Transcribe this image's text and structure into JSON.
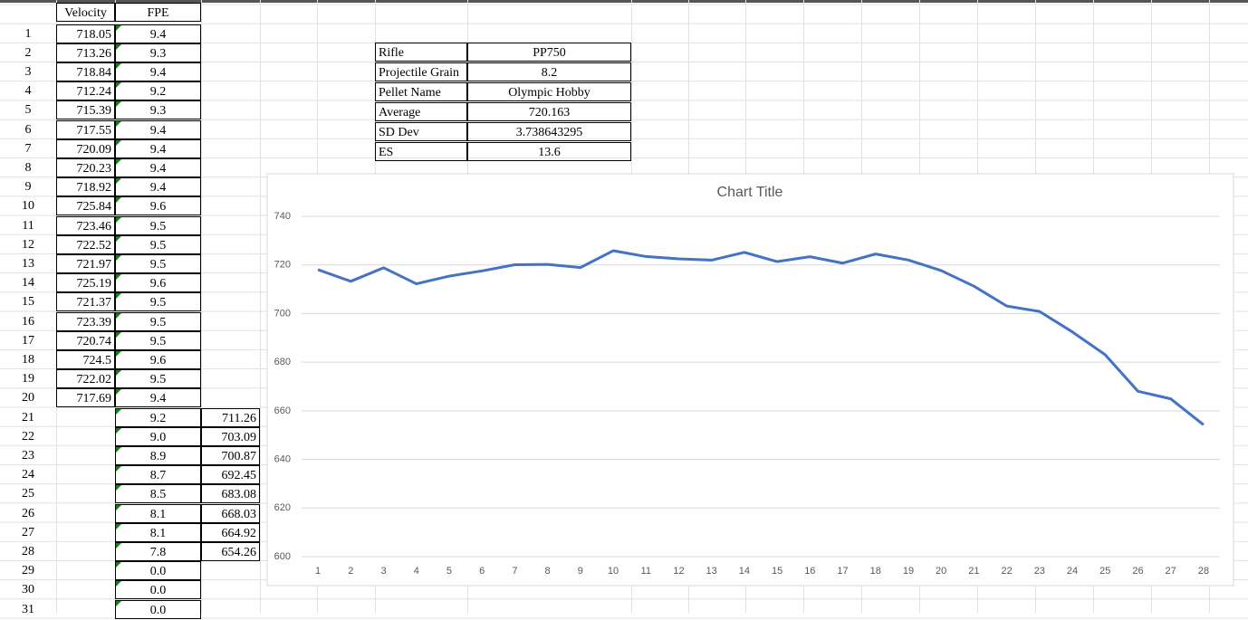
{
  "sheet": {
    "headers": [
      "Velocity",
      "FPE"
    ],
    "row_numbers": [
      1,
      2,
      3,
      4,
      5,
      6,
      7,
      8,
      9,
      10,
      11,
      12,
      13,
      14,
      15,
      16,
      17,
      18,
      19,
      20,
      21,
      22,
      23,
      24,
      25,
      26,
      27,
      28,
      29,
      30,
      31
    ],
    "velocity": [
      "718.05",
      "713.26",
      "718.84",
      "712.24",
      "715.39",
      "717.55",
      "720.09",
      "720.23",
      "718.92",
      "725.84",
      "723.46",
      "722.52",
      "721.97",
      "725.19",
      "721.37",
      "723.39",
      "720.74",
      "724.5",
      "722.02",
      "717.69"
    ],
    "fpe": [
      "9.4",
      "9.3",
      "9.4",
      "9.2",
      "9.3",
      "9.4",
      "9.4",
      "9.4",
      "9.4",
      "9.6",
      "9.5",
      "9.5",
      "9.5",
      "9.6",
      "9.5",
      "9.5",
      "9.5",
      "9.6",
      "9.5",
      "9.4",
      "9.2",
      "9.0",
      "8.9",
      "8.7",
      "8.5",
      "8.1",
      "8.1",
      "7.8",
      "0.0",
      "0.0",
      "0.0"
    ],
    "extra_velocity": [
      "711.26",
      "703.09",
      "700.87",
      "692.45",
      "683.08",
      "668.03",
      "664.92",
      "654.26"
    ]
  },
  "info": [
    [
      "Rifle",
      "PP750"
    ],
    [
      "Projectile Grain",
      "8.2"
    ],
    [
      "Pellet Name",
      "Olympic Hobby"
    ],
    [
      "Average",
      "720.163"
    ],
    [
      "SD Dev",
      "3.738643295"
    ],
    [
      "ES",
      "13.6"
    ]
  ],
  "chart_data": {
    "type": "line",
    "title": "Chart Title",
    "categories": [
      1,
      2,
      3,
      4,
      5,
      6,
      7,
      8,
      9,
      10,
      11,
      12,
      13,
      14,
      15,
      16,
      17,
      18,
      19,
      20,
      21,
      22,
      23,
      24,
      25,
      26,
      27,
      28
    ],
    "series": [
      {
        "name": "Velocity",
        "color": "#4472c4",
        "values": [
          718.05,
          713.26,
          718.84,
          712.24,
          715.39,
          717.55,
          720.09,
          720.23,
          718.92,
          725.84,
          723.46,
          722.52,
          721.97,
          725.19,
          721.37,
          723.39,
          720.74,
          724.5,
          722.02,
          717.69,
          711.26,
          703.09,
          700.87,
          692.45,
          683.08,
          668.03,
          664.92,
          654.26
        ]
      }
    ],
    "ylim": [
      600,
      740
    ],
    "yticks": [
      600,
      620,
      640,
      660,
      680,
      700,
      720,
      740
    ],
    "grid": true
  }
}
